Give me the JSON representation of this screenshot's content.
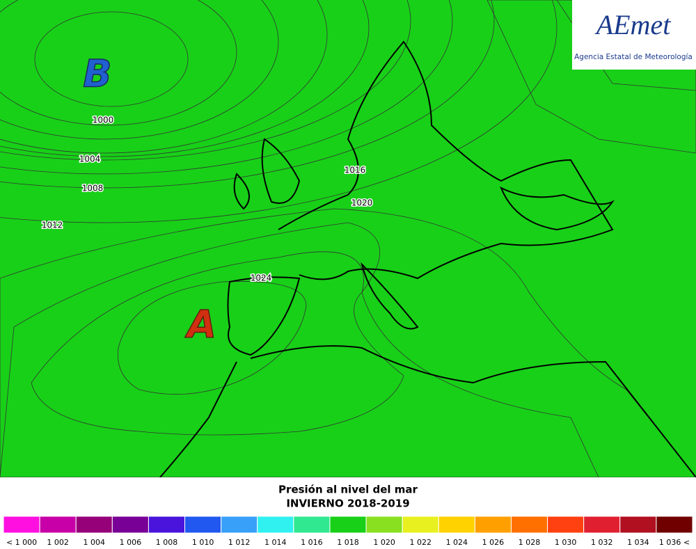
{
  "logo": {
    "brand": "AEmet",
    "agency": "Agencia Estatal de Meteorología"
  },
  "map": {
    "low_label": "B",
    "high_label": "A",
    "isobar_labels": [
      "1000",
      "1004",
      "1008",
      "1012",
      "1016",
      "1020",
      "1024"
    ]
  },
  "title": {
    "line1": "Presión al nivel del mar",
    "line2": "INVIERNO 2018-2019"
  },
  "legend": [
    {
      "label": "< 1 000",
      "color": "#ff10e0"
    },
    {
      "label": "1 002",
      "color": "#c800a8"
    },
    {
      "label": "1 004",
      "color": "#960078"
    },
    {
      "label": "1 006",
      "color": "#780096"
    },
    {
      "label": "1 008",
      "color": "#4a14dc"
    },
    {
      "label": "1 010",
      "color": "#2058f0"
    },
    {
      "label": "1 012",
      "color": "#38a0f8"
    },
    {
      "label": "1 014",
      "color": "#30f0f0"
    },
    {
      "label": "1 016",
      "color": "#30e890"
    },
    {
      "label": "1 018",
      "color": "#18d018"
    },
    {
      "label": "1 020",
      "color": "#88e020"
    },
    {
      "label": "1 022",
      "color": "#e8f020"
    },
    {
      "label": "1 024",
      "color": "#ffd200"
    },
    {
      "label": "1 026",
      "color": "#ffa000"
    },
    {
      "label": "1 028",
      "color": "#ff7000"
    },
    {
      "label": "1 030",
      "color": "#ff4010"
    },
    {
      "label": "1 032",
      "color": "#e02030"
    },
    {
      "label": "1 034",
      "color": "#b01020"
    },
    {
      "label": "1 036 <",
      "color": "#700000"
    }
  ]
}
